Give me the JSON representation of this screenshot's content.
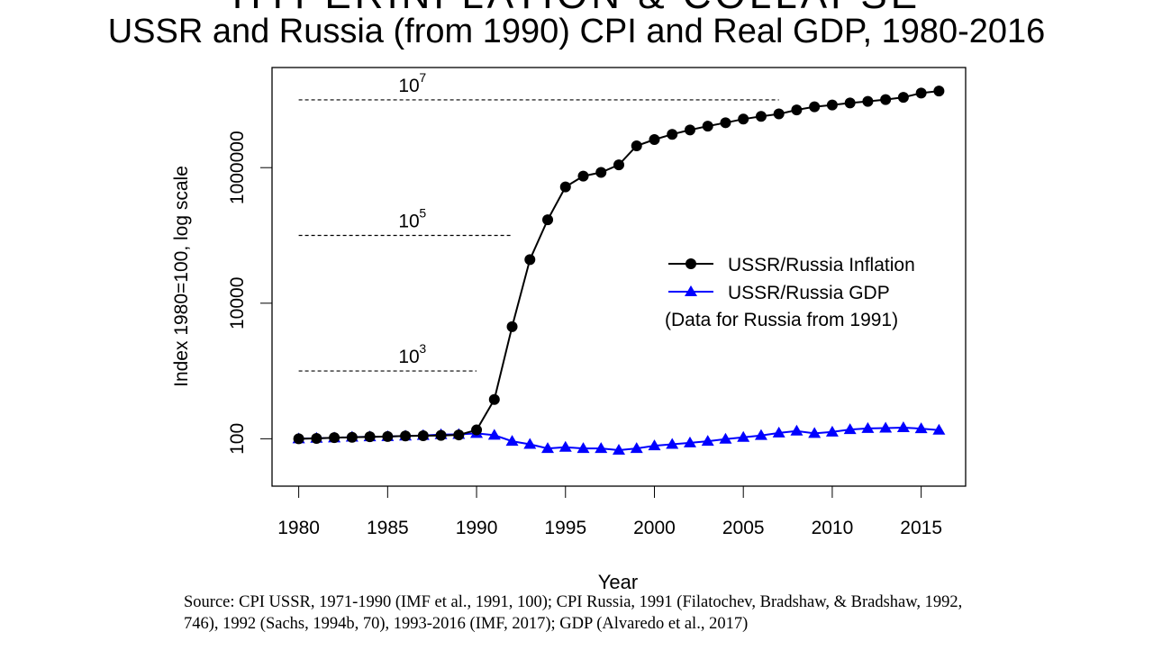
{
  "page": {
    "clipped_heading": "HYPERINFLATION & COLLAPSE",
    "source_text": "Source: CPI USSR, 1971-1990 (IMF et al., 1991, 100); CPI Russia, 1991 (Filatochev, Bradshaw, & Bradshaw, 1992, 746), 1992 (Sachs, 1994b, 70), 1993-2016 (IMF, 2017); GDP (Alvaredo et al., 2017)"
  },
  "chart_data": {
    "type": "line",
    "title": "USSR and Russia (from 1990) CPI and Real GDP, 1980-2016",
    "xlabel": "Year",
    "ylabel": "Index 1980=100, log scale",
    "y_scale": "log",
    "xlim": [
      1978.5,
      2017.5
    ],
    "ylim": [
      20,
      30000000
    ],
    "x_ticks": [
      1980,
      1985,
      1990,
      1995,
      2000,
      2005,
      2010,
      2015
    ],
    "y_ticks": [
      {
        "value": 100,
        "label": "100"
      },
      {
        "value": 10000,
        "label": "10000"
      },
      {
        "value": 1000000,
        "label": "1000000"
      }
    ],
    "reference_lines": [
      {
        "y": 10000000,
        "x_from": 1980,
        "x_to": 2007,
        "label_base": "10",
        "label_exp": "7",
        "label_x": 1985
      },
      {
        "y": 100000,
        "x_from": 1980,
        "x_to": 1992,
        "label_base": "10",
        "label_exp": "5",
        "label_x": 1985
      },
      {
        "y": 1000,
        "x_from": 1980,
        "x_to": 1990,
        "label_base": "10",
        "label_exp": "3",
        "label_x": 1985
      }
    ],
    "x": [
      1980,
      1981,
      1982,
      1983,
      1984,
      1985,
      1986,
      1987,
      1988,
      1989,
      1990,
      1991,
      1992,
      1993,
      1994,
      1995,
      1996,
      1997,
      1998,
      1999,
      2000,
      2001,
      2002,
      2003,
      2004,
      2005,
      2006,
      2007,
      2008,
      2009,
      2010,
      2011,
      2012,
      2013,
      2014,
      2015,
      2016
    ],
    "series": [
      {
        "name": "USSR/Russia Inflation",
        "color": "#000000",
        "marker": "circle",
        "values": [
          100,
          101,
          104,
          105,
          107,
          108,
          110,
          111,
          112,
          114,
          135,
          380,
          4500,
          44000,
          170000,
          520000,
          750000,
          850000,
          1100000,
          2100000,
          2600000,
          3100000,
          3600000,
          4100000,
          4600000,
          5200000,
          5700000,
          6200000,
          7100000,
          7900000,
          8400000,
          9000000,
          9500000,
          10100000,
          10900000,
          12600000,
          13500000
        ],
        "legend_note": "(Data for Russia from 1991)"
      },
      {
        "name": "USSR/Russia GDP",
        "color": "#0000ff",
        "marker": "triangle",
        "values": [
          100,
          102,
          103,
          106,
          107,
          108,
          110,
          112,
          115,
          116,
          120,
          113,
          92,
          83,
          72,
          75,
          72,
          72,
          68,
          72,
          79,
          83,
          87,
          92,
          99,
          105,
          112,
          122,
          130,
          120,
          126,
          137,
          142,
          144,
          146,
          141,
          134
        ]
      }
    ],
    "legend_position": "middle-right"
  }
}
